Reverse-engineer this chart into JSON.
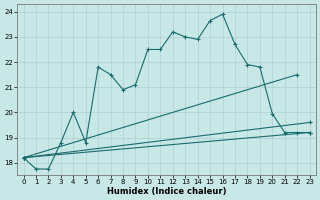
{
  "xlabel": "Humidex (Indice chaleur)",
  "background_color": "#c8e8e8",
  "grid_color": "#b0d0d0",
  "line_color": "#1a6b6b",
  "xlim": [
    -0.5,
    23.5
  ],
  "ylim": [
    17.5,
    24.3
  ],
  "xticks": [
    0,
    1,
    2,
    3,
    4,
    5,
    6,
    7,
    8,
    9,
    10,
    11,
    12,
    13,
    14,
    15,
    16,
    17,
    18,
    19,
    20,
    21,
    22,
    23
  ],
  "yticks": [
    18,
    19,
    20,
    21,
    22,
    23,
    24
  ],
  "series1_x": [
    0,
    1,
    2,
    3,
    4,
    5,
    6,
    7,
    8,
    9,
    10,
    11,
    12,
    13,
    14,
    15,
    16,
    17,
    18,
    19,
    20,
    21,
    22,
    23
  ],
  "series1_y": [
    18.2,
    17.75,
    17.75,
    18.8,
    20.0,
    18.8,
    21.8,
    21.5,
    20.9,
    21.1,
    22.5,
    22.5,
    23.2,
    23.0,
    22.9,
    23.65,
    23.9,
    22.7,
    21.9,
    21.8,
    19.95,
    19.2,
    19.2,
    19.2
  ],
  "series2_x": [
    0,
    22
  ],
  "series2_y": [
    18.2,
    21.5
  ],
  "series3_x": [
    0,
    23
  ],
  "series3_y": [
    18.2,
    19.2
  ],
  "series4_x": [
    0,
    23
  ],
  "series4_y": [
    18.2,
    19.6
  ]
}
